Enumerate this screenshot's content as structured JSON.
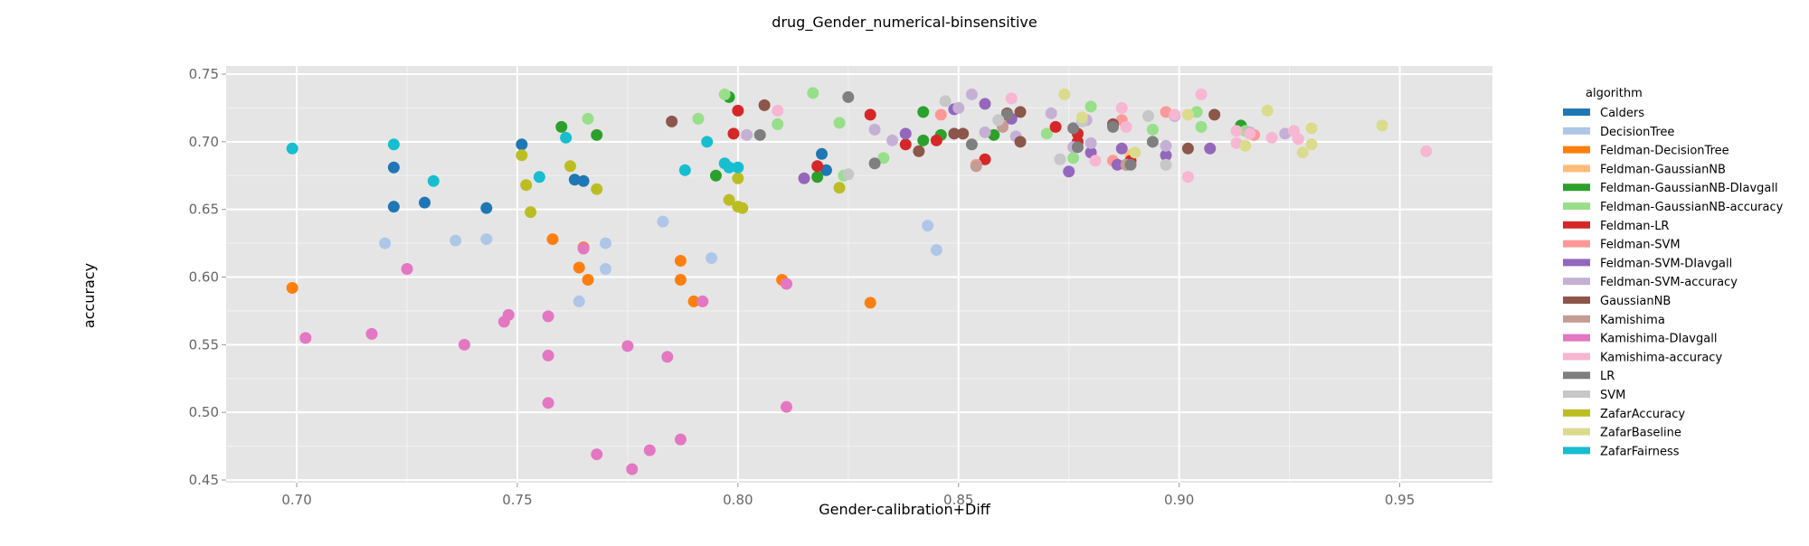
{
  "chart_data": {
    "type": "scatter",
    "title": "drug_Gender_numerical-binsensitive",
    "xlabel": "Gender-calibration+Diff",
    "ylabel": "accuracy",
    "xlim": [
      0.684,
      0.971
    ],
    "ylim": [
      0.448,
      0.756
    ],
    "xticks": [
      "0.70",
      "0.75",
      "0.80",
      "0.85",
      "0.90",
      "0.95"
    ],
    "yticks": [
      "0.45",
      "0.50",
      "0.55",
      "0.60",
      "0.65",
      "0.70",
      "0.75"
    ],
    "grid": true,
    "legend_title": "algorithm",
    "legend_position": "right",
    "colors": {
      "plot_background": "#e5e5e5",
      "grid": "#ffffff"
    },
    "series": [
      {
        "name": "Calders",
        "color": "#1f77b4",
        "points": [
          [
            0.722,
            0.681
          ],
          [
            0.722,
            0.652
          ],
          [
            0.729,
            0.655
          ],
          [
            0.743,
            0.651
          ],
          [
            0.751,
            0.698
          ],
          [
            0.763,
            0.672
          ],
          [
            0.765,
            0.671
          ],
          [
            0.819,
            0.691
          ],
          [
            0.82,
            0.679
          ]
        ]
      },
      {
        "name": "DecisionTree",
        "color": "#aec7e8",
        "points": [
          [
            0.72,
            0.625
          ],
          [
            0.736,
            0.627
          ],
          [
            0.743,
            0.628
          ],
          [
            0.764,
            0.582
          ],
          [
            0.77,
            0.625
          ],
          [
            0.77,
            0.606
          ],
          [
            0.783,
            0.641
          ],
          [
            0.794,
            0.614
          ],
          [
            0.843,
            0.638
          ],
          [
            0.845,
            0.62
          ]
        ]
      },
      {
        "name": "Feldman-DecisionTree",
        "color": "#ff7f0e",
        "points": [
          [
            0.699,
            0.592
          ],
          [
            0.758,
            0.628
          ],
          [
            0.764,
            0.607
          ],
          [
            0.765,
            0.622
          ],
          [
            0.766,
            0.598
          ],
          [
            0.787,
            0.612
          ],
          [
            0.787,
            0.598
          ],
          [
            0.79,
            0.582
          ],
          [
            0.81,
            0.598
          ],
          [
            0.83,
            0.581
          ]
        ]
      },
      {
        "name": "Feldman-GaussianNB",
        "color": "#ffbb78",
        "points": [
          [
            0.889,
            0.69
          ]
        ]
      },
      {
        "name": "Feldman-GaussianNB-DIavgall",
        "color": "#2ca02c",
        "points": [
          [
            0.76,
            0.711
          ],
          [
            0.768,
            0.705
          ],
          [
            0.795,
            0.675
          ],
          [
            0.798,
            0.733
          ],
          [
            0.818,
            0.674
          ],
          [
            0.842,
            0.701
          ],
          [
            0.842,
            0.722
          ],
          [
            0.846,
            0.705
          ],
          [
            0.858,
            0.705
          ],
          [
            0.914,
            0.712
          ]
        ]
      },
      {
        "name": "Feldman-GaussianNB-accuracy",
        "color": "#98df8a",
        "points": [
          [
            0.766,
            0.717
          ],
          [
            0.791,
            0.717
          ],
          [
            0.797,
            0.735
          ],
          [
            0.809,
            0.713
          ],
          [
            0.817,
            0.736
          ],
          [
            0.823,
            0.714
          ],
          [
            0.824,
            0.675
          ],
          [
            0.833,
            0.688
          ],
          [
            0.87,
            0.706
          ],
          [
            0.876,
            0.688
          ],
          [
            0.88,
            0.726
          ],
          [
            0.894,
            0.709
          ],
          [
            0.904,
            0.722
          ],
          [
            0.905,
            0.711
          ],
          [
            0.915,
            0.708
          ]
        ]
      },
      {
        "name": "Feldman-LR",
        "color": "#d62728",
        "points": [
          [
            0.799,
            0.706
          ],
          [
            0.8,
            0.723
          ],
          [
            0.818,
            0.682
          ],
          [
            0.83,
            0.72
          ],
          [
            0.838,
            0.698
          ],
          [
            0.845,
            0.701
          ],
          [
            0.856,
            0.687
          ],
          [
            0.872,
            0.711
          ],
          [
            0.877,
            0.706
          ],
          [
            0.877,
            0.7
          ],
          [
            0.889,
            0.686
          ]
        ]
      },
      {
        "name": "Feldman-SVM",
        "color": "#ff9896",
        "points": [
          [
            0.846,
            0.72
          ],
          [
            0.854,
            0.683
          ],
          [
            0.86,
            0.713
          ],
          [
            0.885,
            0.686
          ],
          [
            0.887,
            0.716
          ],
          [
            0.897,
            0.722
          ],
          [
            0.917,
            0.705
          ]
        ]
      },
      {
        "name": "Feldman-SVM-DIavgall",
        "color": "#9467bd",
        "points": [
          [
            0.815,
            0.673
          ],
          [
            0.838,
            0.706
          ],
          [
            0.849,
            0.724
          ],
          [
            0.856,
            0.728
          ],
          [
            0.862,
            0.717
          ],
          [
            0.875,
            0.678
          ],
          [
            0.88,
            0.692
          ],
          [
            0.886,
            0.683
          ],
          [
            0.887,
            0.695
          ],
          [
            0.897,
            0.69
          ],
          [
            0.907,
            0.695
          ]
        ]
      },
      {
        "name": "Feldman-SVM-accuracy",
        "color": "#c5b0d5",
        "points": [
          [
            0.802,
            0.705
          ],
          [
            0.831,
            0.709
          ],
          [
            0.835,
            0.701
          ],
          [
            0.85,
            0.725
          ],
          [
            0.853,
            0.735
          ],
          [
            0.856,
            0.707
          ],
          [
            0.863,
            0.704
          ],
          [
            0.871,
            0.721
          ],
          [
            0.876,
            0.696
          ],
          [
            0.879,
            0.716
          ],
          [
            0.88,
            0.699
          ],
          [
            0.897,
            0.697
          ],
          [
            0.899,
            0.719
          ],
          [
            0.916,
            0.707
          ],
          [
            0.924,
            0.706
          ]
        ]
      },
      {
        "name": "GaussianNB",
        "color": "#8c564b",
        "points": [
          [
            0.785,
            0.715
          ],
          [
            0.806,
            0.727
          ],
          [
            0.841,
            0.693
          ],
          [
            0.849,
            0.706
          ],
          [
            0.851,
            0.706
          ],
          [
            0.861,
            0.721
          ],
          [
            0.864,
            0.722
          ],
          [
            0.864,
            0.7
          ],
          [
            0.885,
            0.713
          ],
          [
            0.888,
            0.683
          ],
          [
            0.902,
            0.695
          ],
          [
            0.908,
            0.72
          ]
        ]
      },
      {
        "name": "Kamishima",
        "color": "#c49c94",
        "points": [
          [
            0.854,
            0.682
          ],
          [
            0.86,
            0.711
          ],
          [
            0.888,
            0.683
          ]
        ]
      },
      {
        "name": "Kamishima-DIavgall",
        "color": "#e377c2",
        "points": [
          [
            0.702,
            0.555
          ],
          [
            0.717,
            0.558
          ],
          [
            0.725,
            0.606
          ],
          [
            0.738,
            0.55
          ],
          [
            0.747,
            0.567
          ],
          [
            0.748,
            0.572
          ],
          [
            0.757,
            0.542
          ],
          [
            0.757,
            0.571
          ],
          [
            0.757,
            0.507
          ],
          [
            0.765,
            0.621
          ],
          [
            0.768,
            0.469
          ],
          [
            0.775,
            0.549
          ],
          [
            0.776,
            0.458
          ],
          [
            0.784,
            0.541
          ],
          [
            0.78,
            0.472
          ],
          [
            0.787,
            0.48
          ],
          [
            0.792,
            0.582
          ],
          [
            0.811,
            0.595
          ],
          [
            0.811,
            0.504
          ]
        ]
      },
      {
        "name": "Kamishima-accuracy",
        "color": "#f7b6d2",
        "points": [
          [
            0.809,
            0.723
          ],
          [
            0.862,
            0.732
          ],
          [
            0.881,
            0.686
          ],
          [
            0.887,
            0.725
          ],
          [
            0.888,
            0.711
          ],
          [
            0.899,
            0.72
          ],
          [
            0.902,
            0.674
          ],
          [
            0.905,
            0.735
          ],
          [
            0.913,
            0.699
          ],
          [
            0.913,
            0.708
          ],
          [
            0.916,
            0.706
          ],
          [
            0.921,
            0.703
          ],
          [
            0.926,
            0.708
          ],
          [
            0.927,
            0.702
          ],
          [
            0.956,
            0.693
          ]
        ]
      },
      {
        "name": "LR",
        "color": "#7f7f7f",
        "points": [
          [
            0.805,
            0.705
          ],
          [
            0.825,
            0.733
          ],
          [
            0.831,
            0.684
          ],
          [
            0.853,
            0.698
          ],
          [
            0.861,
            0.72
          ],
          [
            0.876,
            0.71
          ],
          [
            0.877,
            0.696
          ],
          [
            0.885,
            0.711
          ],
          [
            0.889,
            0.683
          ],
          [
            0.894,
            0.7
          ]
        ]
      },
      {
        "name": "SVM",
        "color": "#c7c7c7",
        "points": [
          [
            0.825,
            0.676
          ],
          [
            0.847,
            0.73
          ],
          [
            0.859,
            0.716
          ],
          [
            0.873,
            0.687
          ],
          [
            0.878,
            0.715
          ],
          [
            0.893,
            0.719
          ],
          [
            0.897,
            0.683
          ]
        ]
      },
      {
        "name": "ZafarAccuracy",
        "color": "#bcbd22",
        "points": [
          [
            0.751,
            0.69
          ],
          [
            0.752,
            0.668
          ],
          [
            0.753,
            0.648
          ],
          [
            0.762,
            0.682
          ],
          [
            0.768,
            0.665
          ],
          [
            0.798,
            0.657
          ],
          [
            0.8,
            0.652
          ],
          [
            0.801,
            0.651
          ],
          [
            0.8,
            0.673
          ],
          [
            0.823,
            0.666
          ]
        ]
      },
      {
        "name": "ZafarBaseline",
        "color": "#dbdb8d",
        "points": [
          [
            0.874,
            0.735
          ],
          [
            0.878,
            0.718
          ],
          [
            0.89,
            0.692
          ],
          [
            0.902,
            0.72
          ],
          [
            0.915,
            0.697
          ],
          [
            0.92,
            0.723
          ],
          [
            0.928,
            0.692
          ],
          [
            0.93,
            0.71
          ],
          [
            0.93,
            0.698
          ],
          [
            0.946,
            0.712
          ]
        ]
      },
      {
        "name": "ZafarFairness",
        "color": "#17becf",
        "points": [
          [
            0.699,
            0.695
          ],
          [
            0.722,
            0.698
          ],
          [
            0.731,
            0.671
          ],
          [
            0.755,
            0.674
          ],
          [
            0.761,
            0.703
          ],
          [
            0.788,
            0.679
          ],
          [
            0.793,
            0.7
          ],
          [
            0.797,
            0.684
          ],
          [
            0.798,
            0.681
          ],
          [
            0.8,
            0.681
          ]
        ]
      }
    ]
  }
}
